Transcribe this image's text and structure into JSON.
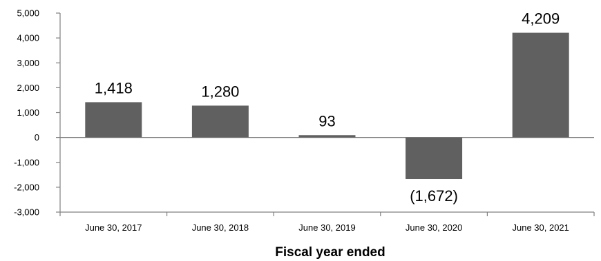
{
  "chart_data": {
    "type": "bar",
    "categories": [
      "June 30, 2017",
      "June 30, 2018",
      "June 30, 2019",
      "June 30, 2020",
      "June 30, 2021"
    ],
    "values": [
      1418,
      1280,
      93,
      -1672,
      4209
    ],
    "data_labels": [
      "1,418",
      "1,280",
      "93",
      "(1,672)",
      "4,209"
    ],
    "title": "",
    "xlabel": "Fiscal year ended",
    "ylabel": "",
    "ylim": [
      -3000,
      5000
    ],
    "yticks": [
      5000,
      4000,
      3000,
      2000,
      1000,
      0,
      -1000,
      -2000,
      -3000
    ],
    "ytick_labels": [
      "5,000",
      "4,000",
      "3,000",
      "2,000",
      "1,000",
      "0",
      "-1,000",
      "-2,000",
      "-3,000"
    ],
    "grid": false,
    "legend": "none",
    "bar_color": "#606060",
    "axis_color": "#7f7f7f"
  }
}
